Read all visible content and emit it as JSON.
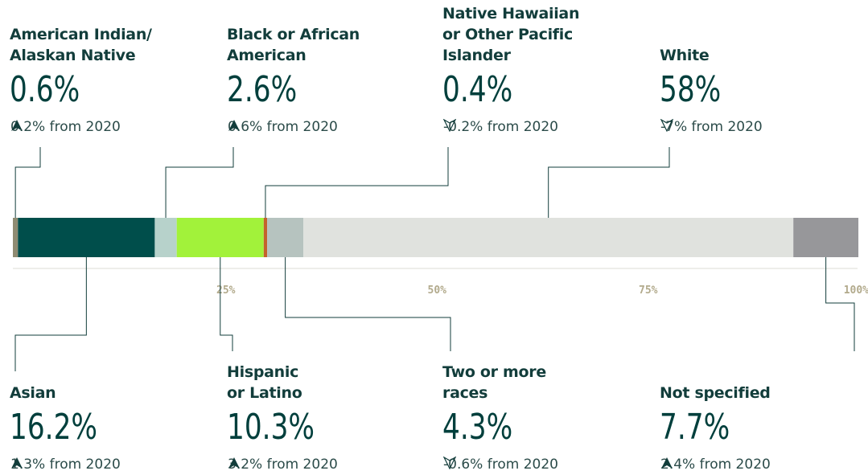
{
  "chart_data": {
    "type": "stacked_bar",
    "categories": [
      "American Indian/\nAlaskan Native",
      "Asian",
      "Black or African\nAmerican",
      "Hispanic\nor Latino",
      "Native Hawaiian\nor Other Pacific\nIslander",
      "Two or more\nraces",
      "White",
      "Not specified"
    ],
    "values": [
      0.6,
      16.2,
      2.6,
      10.3,
      0.4,
      4.3,
      58,
      7.7
    ],
    "value_labels": [
      "0.6%",
      "16.2%",
      "2.6%",
      "10.3%",
      "0.4%",
      "4.3%",
      "58%",
      "7.7%"
    ],
    "changes": [
      "0.2% from 2020",
      "1.3% from 2020",
      "0.6% from 2020",
      "3.2% from 2020",
      "-0.2% from 2020",
      "-0.6% from 2020",
      "-7% from 2020",
      "2.4% from 2020"
    ],
    "change_directions": [
      "up",
      "up",
      "up",
      "up",
      "down",
      "down",
      "down",
      "up"
    ],
    "colors": [
      "#8f8b72",
      "#004e4b",
      "#b7d2cb",
      "#a2f23a",
      "#c4622c",
      "#b6c3bf",
      "#e0e2de",
      "#97979a"
    ],
    "xlim": [
      0,
      100
    ],
    "xticks": [
      {
        "value": 25,
        "label": "25%"
      },
      {
        "value": 50,
        "label": "50%"
      },
      {
        "value": 75,
        "label": "75%"
      },
      {
        "value": 100,
        "label": "100%"
      }
    ]
  }
}
